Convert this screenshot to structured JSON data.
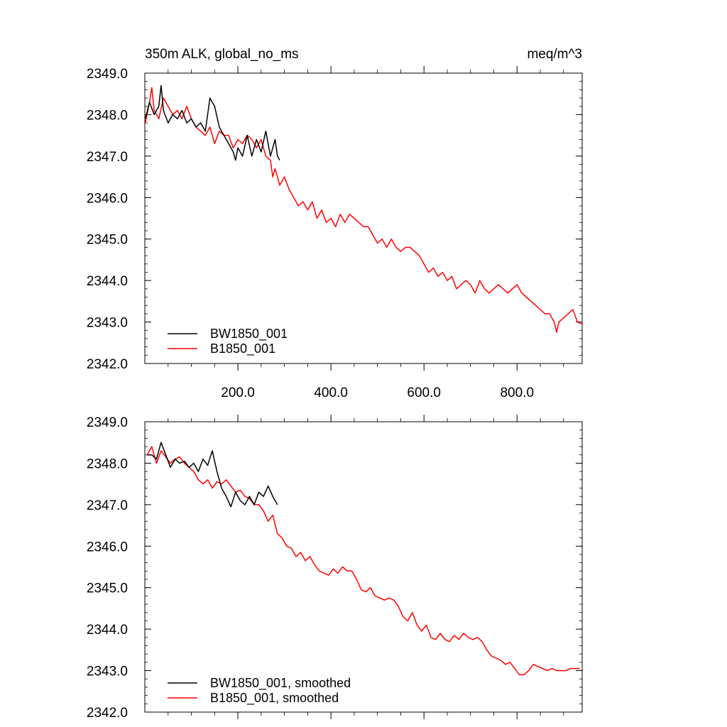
{
  "chart_data": [
    {
      "type": "line",
      "title_left": "350m ALK, global_no_ms",
      "title_right": "meq/m^3",
      "xlim": [
        0,
        940
      ],
      "ylim": [
        2342.0,
        2349.0
      ],
      "xticks": [
        200,
        400,
        600,
        800
      ],
      "xtick_labels": [
        "200.0",
        "400.0",
        "600.0",
        "800.0"
      ],
      "yticks": [
        2342,
        2343,
        2344,
        2345,
        2346,
        2347,
        2348,
        2349
      ],
      "ytick_labels": [
        "2342.0",
        "2343.0",
        "2344.0",
        "2345.0",
        "2346.0",
        "2347.0",
        "2348.0",
        "2349.0"
      ],
      "legend_position": "bottom-left",
      "series": [
        {
          "name": "BW1850_001",
          "color": "#000000",
          "x": [
            1,
            10,
            20,
            30,
            35,
            40,
            50,
            60,
            70,
            80,
            90,
            100,
            110,
            120,
            130,
            140,
            150,
            160,
            170,
            180,
            190,
            195,
            200,
            210,
            220,
            230,
            240,
            250,
            260,
            270,
            280,
            285,
            290
          ],
          "y": [
            2347.9,
            2348.3,
            2348.0,
            2348.2,
            2348.7,
            2348.1,
            2347.8,
            2348.0,
            2347.9,
            2348.1,
            2347.8,
            2347.9,
            2347.7,
            2347.8,
            2347.6,
            2348.4,
            2348.2,
            2347.7,
            2347.5,
            2347.3,
            2347.1,
            2346.9,
            2347.2,
            2347.0,
            2347.5,
            2347.0,
            2347.4,
            2347.1,
            2347.6,
            2347.0,
            2347.4,
            2347.0,
            2346.9
          ]
        },
        {
          "name": "B1850_001",
          "color": "#ff0000",
          "x": [
            1,
            10,
            15,
            20,
            30,
            40,
            50,
            60,
            70,
            80,
            90,
            100,
            110,
            120,
            130,
            140,
            150,
            160,
            170,
            180,
            190,
            200,
            210,
            220,
            230,
            240,
            250,
            260,
            270,
            275,
            280,
            290,
            300,
            310,
            320,
            330,
            340,
            350,
            360,
            370,
            380,
            390,
            400,
            410,
            420,
            430,
            440,
            450,
            460,
            470,
            480,
            490,
            500,
            510,
            520,
            530,
            540,
            550,
            560,
            570,
            580,
            590,
            600,
            610,
            620,
            630,
            640,
            650,
            660,
            670,
            680,
            690,
            700,
            710,
            720,
            730,
            740,
            750,
            760,
            770,
            780,
            790,
            800,
            810,
            820,
            830,
            840,
            850,
            860,
            870,
            880,
            885,
            890,
            900,
            910,
            920,
            930,
            940
          ],
          "y": [
            2347.8,
            2348.3,
            2348.65,
            2348.1,
            2347.9,
            2348.4,
            2348.2,
            2348.0,
            2348.1,
            2347.9,
            2348.2,
            2347.9,
            2347.7,
            2347.6,
            2347.5,
            2347.7,
            2347.3,
            2347.6,
            2347.5,
            2347.5,
            2347.2,
            2347.4,
            2347.3,
            2347.5,
            2347.4,
            2347.2,
            2347.4,
            2347.0,
            2346.9,
            2346.5,
            2346.7,
            2346.3,
            2346.5,
            2346.2,
            2346.0,
            2345.8,
            2345.9,
            2345.7,
            2345.9,
            2345.5,
            2345.7,
            2345.4,
            2345.5,
            2345.3,
            2345.6,
            2345.4,
            2345.6,
            2345.5,
            2345.4,
            2345.3,
            2345.3,
            2345.1,
            2344.9,
            2345.0,
            2344.8,
            2345.0,
            2344.8,
            2344.7,
            2344.8,
            2344.8,
            2344.7,
            2344.6,
            2344.4,
            2344.2,
            2344.3,
            2344.1,
            2344.2,
            2344.0,
            2344.1,
            2343.8,
            2343.9,
            2344.0,
            2343.9,
            2343.7,
            2344.0,
            2343.8,
            2343.7,
            2343.8,
            2343.9,
            2343.8,
            2343.7,
            2343.8,
            2343.9,
            2343.7,
            2343.6,
            2343.5,
            2343.4,
            2343.3,
            2343.2,
            2343.2,
            2343.0,
            2342.75,
            2343.0,
            2343.1,
            2343.2,
            2343.3,
            2343.0,
            2342.95
          ]
        }
      ]
    },
    {
      "type": "line",
      "title_left": "",
      "title_right": "",
      "xlim": [
        0,
        940
      ],
      "ylim": [
        2342.0,
        2349.0
      ],
      "xticks": [
        200,
        400,
        600,
        800
      ],
      "xtick_labels": [],
      "yticks": [
        2342,
        2343,
        2344,
        2345,
        2346,
        2347,
        2348,
        2349
      ],
      "ytick_labels": [
        "2342.0",
        "2343.0",
        "2344.0",
        "2345.0",
        "2346.0",
        "2347.0",
        "2348.0",
        "2349.0"
      ],
      "legend_position": "bottom-left",
      "series": [
        {
          "name": "BW1850_001, smoothed",
          "color": "#000000",
          "x": [
            5,
            15,
            25,
            35,
            45,
            55,
            65,
            75,
            85,
            95,
            105,
            115,
            125,
            135,
            145,
            155,
            165,
            175,
            185,
            195,
            205,
            215,
            225,
            235,
            245,
            255,
            265,
            275,
            285
          ],
          "y": [
            2348.2,
            2348.2,
            2348.1,
            2348.5,
            2348.2,
            2347.9,
            2348.1,
            2348.0,
            2348.05,
            2347.9,
            2348.0,
            2347.8,
            2348.1,
            2347.95,
            2348.3,
            2347.8,
            2347.4,
            2347.2,
            2346.95,
            2347.3,
            2347.1,
            2347.0,
            2347.2,
            2347.0,
            2347.3,
            2347.2,
            2347.45,
            2347.2,
            2347.0
          ]
        },
        {
          "name": "B1850_001, smoothed",
          "color": "#ff0000",
          "x": [
            5,
            15,
            25,
            35,
            45,
            55,
            65,
            75,
            85,
            95,
            105,
            115,
            125,
            135,
            145,
            155,
            165,
            175,
            185,
            195,
            205,
            215,
            225,
            235,
            245,
            255,
            265,
            275,
            285,
            295,
            305,
            315,
            325,
            335,
            345,
            355,
            365,
            375,
            385,
            395,
            405,
            415,
            425,
            435,
            445,
            455,
            465,
            475,
            485,
            495,
            505,
            515,
            525,
            535,
            545,
            555,
            565,
            575,
            585,
            595,
            605,
            615,
            625,
            635,
            645,
            655,
            665,
            675,
            685,
            695,
            705,
            715,
            725,
            735,
            745,
            755,
            765,
            775,
            785,
            795,
            805,
            815,
            825,
            835,
            845,
            855,
            865,
            875,
            885,
            895,
            905,
            915,
            925,
            935
          ],
          "y": [
            2348.2,
            2348.4,
            2348.0,
            2348.3,
            2348.15,
            2348.0,
            2348.1,
            2348.15,
            2348.0,
            2347.9,
            2347.8,
            2347.6,
            2347.5,
            2347.6,
            2347.4,
            2347.55,
            2347.5,
            2347.6,
            2347.45,
            2347.3,
            2347.35,
            2347.2,
            2347.15,
            2347.0,
            2347.0,
            2346.85,
            2346.6,
            2346.75,
            2346.3,
            2346.2,
            2346.0,
            2345.95,
            2345.75,
            2345.85,
            2345.65,
            2345.75,
            2345.55,
            2345.4,
            2345.35,
            2345.3,
            2345.45,
            2345.35,
            2345.5,
            2345.4,
            2345.4,
            2345.2,
            2344.95,
            2344.9,
            2345.0,
            2344.8,
            2344.75,
            2344.7,
            2344.75,
            2344.7,
            2344.55,
            2344.3,
            2344.2,
            2344.4,
            2344.1,
            2343.95,
            2344.1,
            2343.8,
            2343.75,
            2343.9,
            2343.75,
            2343.7,
            2343.85,
            2343.75,
            2343.9,
            2343.8,
            2343.75,
            2343.8,
            2343.7,
            2343.5,
            2343.35,
            2343.3,
            2343.25,
            2343.15,
            2343.2,
            2343.05,
            2342.9,
            2342.9,
            2343.0,
            2343.15,
            2343.1,
            2343.05,
            2343.0,
            2343.05,
            2343.0,
            2343.0,
            2343.0,
            2343.05,
            2343.05,
            2343.05
          ]
        }
      ]
    }
  ]
}
